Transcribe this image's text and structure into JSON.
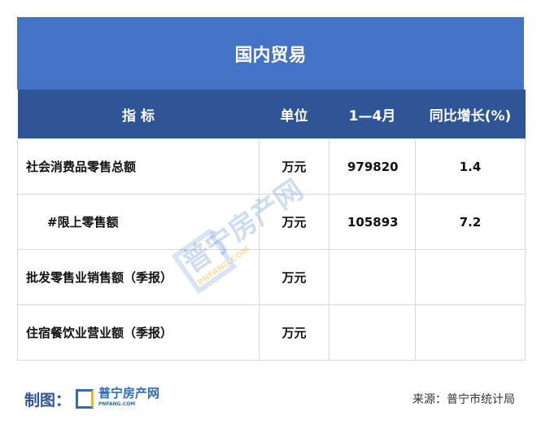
{
  "title": "国内贸易",
  "headers": [
    "指 标",
    "单位",
    "1—4月",
    "同比增长(%)"
  ],
  "rows": [
    {
      "name": "社会消费品零售总额",
      "unit": "万元",
      "value": "979820",
      "growth": "1.4"
    },
    {
      "name": "#限上零售额",
      "unit": "万元",
      "value": "105893",
      "growth": "7.2"
    },
    {
      "name": "批发零售业销售额（季报）",
      "unit": "万元",
      "value": "",
      "growth": ""
    },
    {
      "name": "住宿餐饮业营业额（季报）",
      "unit": "万元",
      "value": "",
      "growth": ""
    }
  ],
  "watermark": {
    "text": "普宁房产网",
    "sub": "PNFANG.COM"
  },
  "footer": {
    "maker_label": "制图：",
    "logo_text": "普宁房产网",
    "logo_sub": "PNFANG.COM",
    "source": "来源：普宁市统计局"
  },
  "colors": {
    "title_bg": "#4472c4",
    "header_bg": "#2f5597"
  }
}
